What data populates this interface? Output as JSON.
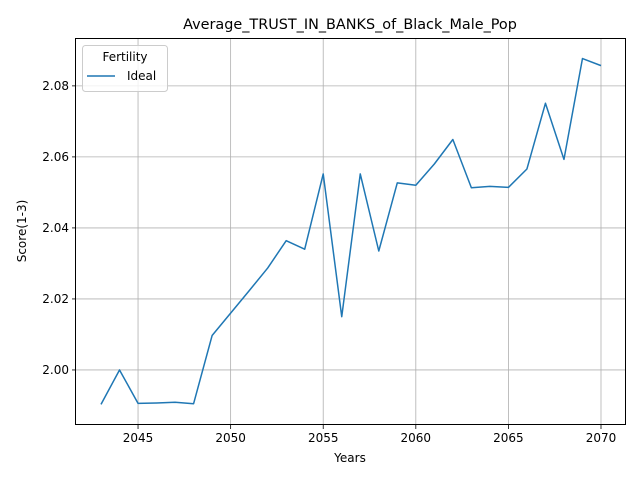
{
  "chart_data": {
    "type": "line",
    "title": "Average_TRUST_IN_BANKS_of_Black_Male_Pop",
    "xlabel": "Years",
    "ylabel": "Score(1-3)",
    "xlim": [
      2041.65,
      2071.35
    ],
    "ylim": [
      1.9845,
      2.0932
    ],
    "xticks": [
      2045,
      2050,
      2055,
      2060,
      2065,
      2070
    ],
    "yticks": [
      2.0,
      2.02,
      2.04,
      2.06,
      2.08
    ],
    "ytick_labels": [
      "2.00",
      "2.02",
      "2.04",
      "2.06",
      "2.08"
    ],
    "grid": true,
    "legend": {
      "title": "Fertility",
      "position": "upper-left"
    },
    "series": [
      {
        "name": "Ideal",
        "color": "#1f77b4",
        "x": [
          2043,
          2044,
          2045,
          2046,
          2047,
          2048,
          2049,
          2050,
          2051,
          2052,
          2053,
          2054,
          2055,
          2056,
          2057,
          2058,
          2059,
          2060,
          2061,
          2062,
          2063,
          2064,
          2065,
          2066,
          2067,
          2068,
          2069,
          2070
        ],
        "y": [
          1.9903,
          2.0,
          1.9906,
          1.9907,
          1.9909,
          1.9905,
          2.0097,
          2.016,
          2.0223,
          2.0287,
          2.0364,
          2.034,
          2.0552,
          2.015,
          2.0552,
          2.0335,
          2.0527,
          2.052,
          2.058,
          2.0649,
          2.0513,
          2.0517,
          2.0514,
          2.0566,
          2.0751,
          2.0593,
          2.0877,
          2.0857
        ]
      }
    ]
  }
}
